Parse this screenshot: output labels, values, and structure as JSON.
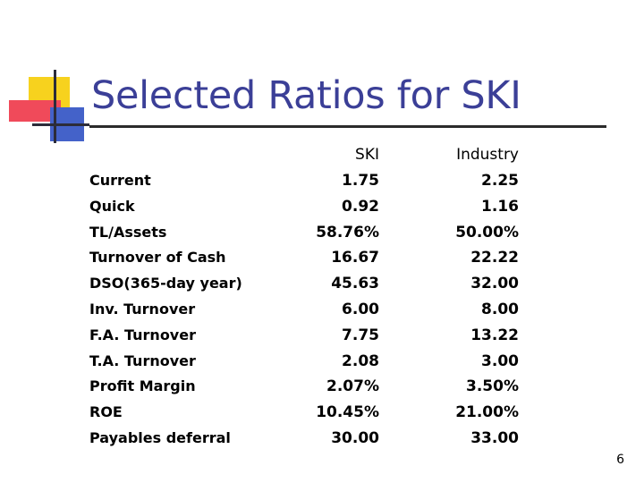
{
  "title": "Selected Ratios for SKI",
  "table": {
    "headers": {
      "ski": "SKI",
      "industry": "Industry"
    },
    "rows": [
      {
        "label": "Current",
        "ski": "1.75",
        "industry": "2.25"
      },
      {
        "label": "Quick",
        "ski": "0.92",
        "industry": "1.16"
      },
      {
        "label": "TL/Assets",
        "ski": "58.76%",
        "industry": "50.00%"
      },
      {
        "label": "Turnover of Cash",
        "ski": "16.67",
        "industry": "22.22"
      },
      {
        "label": "DSO(365-day year)",
        "ski": "45.63",
        "industry": "32.00"
      },
      {
        "label": "Inv. Turnover",
        "ski": "6.00",
        "industry": "8.00"
      },
      {
        "label": "F.A. Turnover",
        "ski": "7.75",
        "industry": "13.22"
      },
      {
        "label": "T.A. Turnover",
        "ski": "2.08",
        "industry": "3.00"
      },
      {
        "label": "Profit Margin",
        "ski": "2.07%",
        "industry": "3.50%"
      },
      {
        "label": "ROE",
        "ski": "10.45%",
        "industry": "21.00%"
      },
      {
        "label": "Payables deferral",
        "ski": "30.00",
        "industry": "33.00"
      }
    ]
  },
  "page_number": "6",
  "colors": {
    "title": "#3b3f97",
    "accent_yellow": "#f7d21e",
    "accent_red": "#f04a5a",
    "accent_blue": "#4462c9"
  }
}
